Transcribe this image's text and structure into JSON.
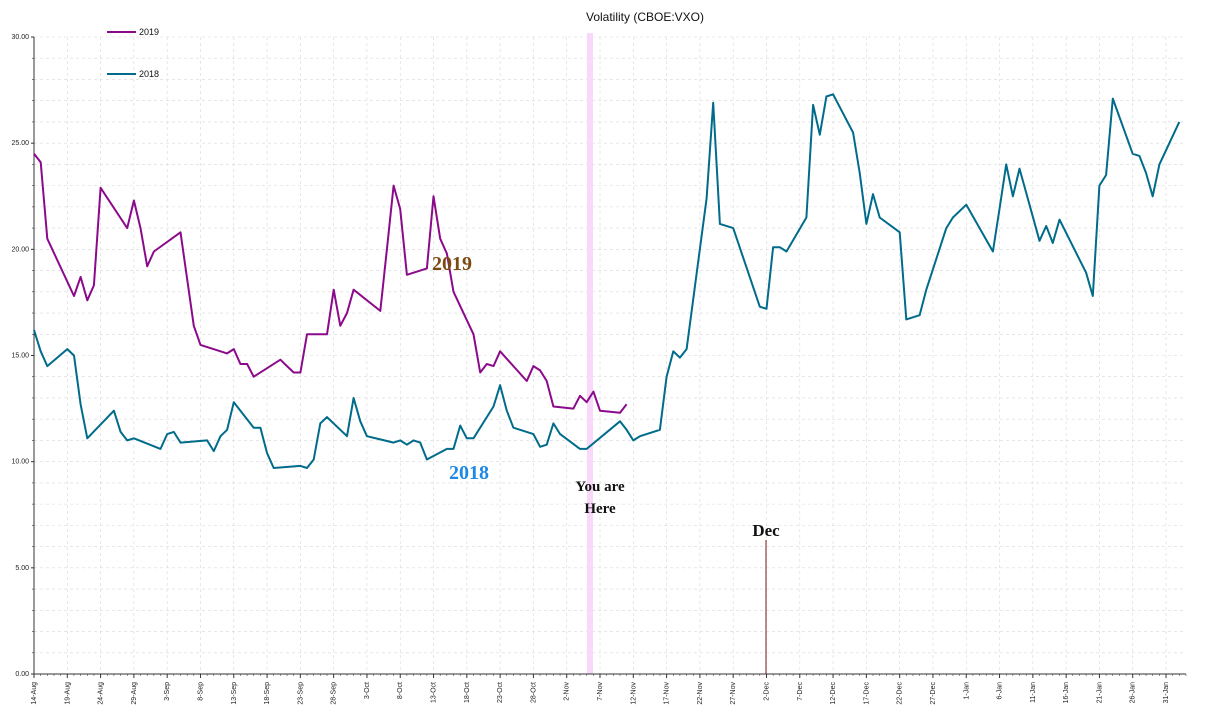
{
  "chart_data": {
    "type": "line",
    "title": "Volatility (CBOE:VXO)",
    "ylim": [
      0,
      30
    ],
    "y_ticks": [
      "0.00",
      "5.00",
      "10.00",
      "15.00",
      "20.00",
      "25.00",
      "30.00"
    ],
    "grid": true,
    "legend_position": "top-left",
    "categories": [
      "14-Aug",
      "19-Aug",
      "24-Aug",
      "29-Aug",
      "3-Sep",
      "8-Sep",
      "13-Sep",
      "18-Sep",
      "23-Sep",
      "28-Sep",
      "3-Oct",
      "8-Oct",
      "13-Oct",
      "18-Oct",
      "23-Oct",
      "28-Oct",
      "2-Nov",
      "7-Nov",
      "12-Nov",
      "17-Nov",
      "22-Nov",
      "27-Nov",
      "2-Dec",
      "7-Dec",
      "12-Dec",
      "17-Dec",
      "22-Dec",
      "27-Dec",
      "1-Jan",
      "6-Jan",
      "11-Jan",
      "16-Jan",
      "21-Jan",
      "26-Jan",
      "31-Jan"
    ],
    "series": [
      {
        "name": "2019",
        "color": "#8b0a8b",
        "values": [
          [
            0,
            24.5
          ],
          [
            1,
            24.1
          ],
          [
            2,
            20.5
          ],
          [
            6,
            17.8
          ],
          [
            7,
            18.7
          ],
          [
            8,
            17.6
          ],
          [
            9,
            18.3
          ],
          [
            10,
            22.9
          ],
          [
            14,
            21.0
          ],
          [
            15,
            22.3
          ],
          [
            16,
            21.0
          ],
          [
            17,
            19.2
          ],
          [
            18,
            19.9
          ],
          [
            22,
            20.8
          ],
          [
            24,
            16.4
          ],
          [
            25,
            15.5
          ],
          [
            29,
            15.1
          ],
          [
            30,
            15.3
          ],
          [
            31,
            14.6
          ],
          [
            32,
            14.6
          ],
          [
            33,
            14.0
          ],
          [
            37,
            14.8
          ],
          [
            38,
            14.5
          ],
          [
            39,
            14.2
          ],
          [
            40,
            14.2
          ],
          [
            41,
            16.0
          ],
          [
            44,
            16.0
          ],
          [
            45,
            18.1
          ],
          [
            46,
            16.4
          ],
          [
            47,
            17.0
          ],
          [
            48,
            18.1
          ],
          [
            52,
            17.1
          ],
          [
            53,
            20.0
          ],
          [
            54,
            23.0
          ],
          [
            55,
            21.9
          ],
          [
            56,
            18.8
          ],
          [
            59,
            19.1
          ],
          [
            60,
            22.5
          ],
          [
            61,
            20.5
          ],
          [
            62,
            19.8
          ],
          [
            63,
            18.0
          ],
          [
            66,
            16.0
          ],
          [
            67,
            14.2
          ],
          [
            68,
            14.6
          ],
          [
            69,
            14.5
          ],
          [
            70,
            15.2
          ],
          [
            74,
            13.8
          ],
          [
            75,
            14.5
          ],
          [
            76,
            14.3
          ],
          [
            77,
            13.8
          ],
          [
            78,
            12.6
          ],
          [
            81,
            12.5
          ],
          [
            82,
            13.1
          ],
          [
            83,
            12.8
          ],
          [
            84,
            13.3
          ],
          [
            85,
            12.4
          ],
          [
            88,
            12.3
          ],
          [
            89,
            12.7
          ]
        ]
      },
      {
        "name": "2018",
        "color": "#006b8a",
        "values": [
          [
            0,
            16.2
          ],
          [
            1,
            15.2
          ],
          [
            2,
            14.5
          ],
          [
            5,
            15.3
          ],
          [
            6,
            15.0
          ],
          [
            7,
            12.7
          ],
          [
            8,
            11.1
          ],
          [
            12,
            12.4
          ],
          [
            13,
            11.4
          ],
          [
            14,
            11.0
          ],
          [
            15,
            11.1
          ],
          [
            19,
            10.6
          ],
          [
            20,
            11.3
          ],
          [
            21,
            11.4
          ],
          [
            22,
            10.9
          ],
          [
            26,
            11.0
          ],
          [
            27,
            10.5
          ],
          [
            28,
            11.2
          ],
          [
            29,
            11.5
          ],
          [
            30,
            12.8
          ],
          [
            33,
            11.6
          ],
          [
            34,
            11.6
          ],
          [
            35,
            10.4
          ],
          [
            36,
            9.7
          ],
          [
            40,
            9.8
          ],
          [
            41,
            9.7
          ],
          [
            42,
            10.1
          ],
          [
            43,
            11.8
          ],
          [
            44,
            12.1
          ],
          [
            47,
            11.2
          ],
          [
            48,
            13.0
          ],
          [
            49,
            11.9
          ],
          [
            50,
            11.2
          ],
          [
            54,
            10.9
          ],
          [
            55,
            11.0
          ],
          [
            56,
            10.8
          ],
          [
            57,
            11.0
          ],
          [
            58,
            10.9
          ],
          [
            59,
            10.1
          ],
          [
            62,
            10.6
          ],
          [
            63,
            10.6
          ],
          [
            64,
            11.7
          ],
          [
            65,
            11.1
          ],
          [
            66,
            11.1
          ],
          [
            69,
            12.6
          ],
          [
            70,
            13.6
          ],
          [
            71,
            12.4
          ],
          [
            72,
            11.6
          ],
          [
            75,
            11.3
          ],
          [
            76,
            10.7
          ],
          [
            77,
            10.8
          ],
          [
            78,
            11.8
          ],
          [
            79,
            11.3
          ],
          [
            82,
            10.6
          ],
          [
            83,
            10.6
          ],
          [
            88,
            11.9
          ],
          [
            89,
            11.5
          ],
          [
            90,
            11.0
          ],
          [
            91,
            11.2
          ],
          [
            94,
            11.5
          ],
          [
            95,
            14.0
          ],
          [
            96,
            15.2
          ],
          [
            97,
            14.9
          ],
          [
            98,
            15.3
          ],
          [
            101,
            22.4
          ],
          [
            102,
            26.9
          ],
          [
            103,
            21.2
          ],
          [
            105,
            21.0
          ],
          [
            109,
            17.3
          ],
          [
            110,
            17.2
          ],
          [
            111,
            20.1
          ],
          [
            112,
            20.1
          ],
          [
            113,
            19.9
          ],
          [
            116,
            21.5
          ],
          [
            117,
            26.8
          ],
          [
            118,
            25.4
          ],
          [
            119,
            27.2
          ],
          [
            120,
            27.3
          ],
          [
            123,
            25.5
          ],
          [
            124,
            23.6
          ],
          [
            125,
            21.2
          ],
          [
            126,
            22.6
          ],
          [
            127,
            21.5
          ],
          [
            130,
            20.8
          ],
          [
            131,
            16.7
          ],
          [
            133,
            16.9
          ],
          [
            134,
            18.1
          ],
          [
            137,
            21.0
          ],
          [
            138,
            21.5
          ],
          [
            140,
            22.1
          ],
          [
            144,
            19.9
          ],
          [
            145,
            21.9
          ],
          [
            146,
            24.0
          ],
          [
            147,
            22.5
          ],
          [
            148,
            23.8
          ],
          [
            151,
            20.4
          ],
          [
            152,
            21.1
          ],
          [
            153,
            20.3
          ],
          [
            154,
            21.4
          ],
          [
            158,
            18.9
          ],
          [
            159,
            17.8
          ],
          [
            160,
            23.0
          ],
          [
            161,
            23.5
          ],
          [
            162,
            27.1
          ],
          [
            165,
            24.5
          ],
          [
            166,
            24.4
          ],
          [
            167,
            23.6
          ],
          [
            168,
            22.5
          ],
          [
            169,
            24.0
          ],
          [
            172,
            26.0
          ]
        ]
      }
    ],
    "annotations": {
      "label_2019": "2019",
      "label_2018": "2018",
      "you_are_here_line1": "You are",
      "you_are_here_line2": "Here",
      "dec": "Dec"
    },
    "colors": {
      "marker_band": "#f9d9f9",
      "dec_line": "#7a1a1a",
      "label_2019": "#7a4a12",
      "label_2018": "#1e88e5",
      "grid": "#d8d8d8"
    }
  }
}
